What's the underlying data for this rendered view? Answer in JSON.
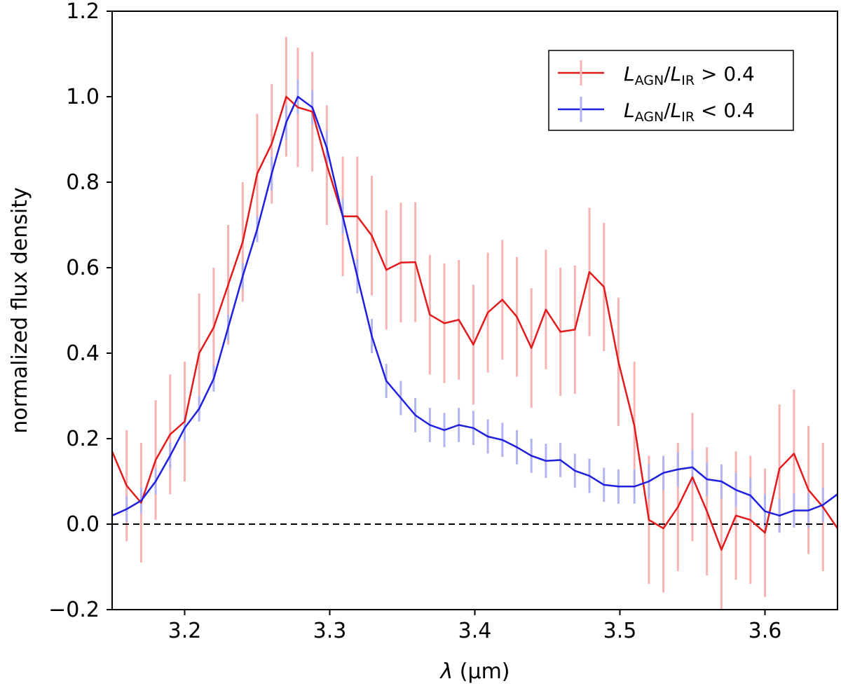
{
  "chart_data": {
    "type": "line",
    "xlabel_symbol": "λ",
    "xlabel_unit": "(μm)",
    "ylabel": "normalized flux density",
    "xlim": [
      3.15,
      3.65
    ],
    "ylim": [
      -0.2,
      1.2
    ],
    "xticks": [
      3.2,
      3.3,
      3.4,
      3.5,
      3.6
    ],
    "xtick_labels": [
      "3.2",
      "3.3",
      "3.4",
      "3.5",
      "3.6"
    ],
    "yticks": [
      -0.2,
      0.0,
      0.2,
      0.4,
      0.6,
      0.8,
      1.0,
      1.2
    ],
    "ytick_labels": [
      "−0.2",
      "0.0",
      "0.2",
      "0.4",
      "0.6",
      "0.8",
      "1.0",
      "1.2"
    ],
    "reference_line": {
      "y": 0.0,
      "style": "dashed",
      "color": "#000000"
    },
    "legend_location": "upper right",
    "series": [
      {
        "name": "high_agn",
        "legend": {
          "sym1": "L",
          "sub1": "AGN",
          "slash": "/",
          "sym2": "L",
          "sub2": "IR",
          "rest": " > 0.4"
        },
        "color": "#e31a1c",
        "errcolor": "#f7b2b2",
        "x": [
          3.15,
          3.16,
          3.17,
          3.18,
          3.19,
          3.2,
          3.21,
          3.22,
          3.23,
          3.24,
          3.25,
          3.26,
          3.27,
          3.278,
          3.288,
          3.298,
          3.309,
          3.319,
          3.329,
          3.339,
          3.349,
          3.359,
          3.369,
          3.379,
          3.389,
          3.399,
          3.409,
          3.419,
          3.429,
          3.439,
          3.449,
          3.459,
          3.469,
          3.479,
          3.489,
          3.499,
          3.51,
          3.52,
          3.53,
          3.54,
          3.55,
          3.56,
          3.57,
          3.58,
          3.59,
          3.6,
          3.61,
          3.62,
          3.63,
          3.64,
          3.65
        ],
        "y": [
          0.17,
          0.09,
          0.05,
          0.15,
          0.21,
          0.24,
          0.4,
          0.46,
          0.56,
          0.66,
          0.82,
          0.89,
          1.0,
          0.975,
          0.965,
          0.84,
          0.72,
          0.72,
          0.675,
          0.595,
          0.612,
          0.613,
          0.49,
          0.47,
          0.478,
          0.42,
          0.495,
          0.525,
          0.485,
          0.412,
          0.502,
          0.45,
          0.455,
          0.59,
          0.555,
          0.38,
          0.23,
          0.01,
          -0.01,
          0.04,
          0.11,
          0.03,
          -0.06,
          0.02,
          0.01,
          -0.02,
          0.13,
          0.165,
          0.08,
          0.04,
          -0.01
        ],
        "err": [
          0.0,
          0.13,
          0.14,
          0.14,
          0.14,
          0.14,
          0.14,
          0.14,
          0.14,
          0.14,
          0.14,
          0.14,
          0.14,
          0.14,
          0.14,
          0.14,
          0.14,
          0.14,
          0.14,
          0.14,
          0.14,
          0.14,
          0.14,
          0.14,
          0.14,
          0.14,
          0.14,
          0.14,
          0.14,
          0.14,
          0.14,
          0.15,
          0.15,
          0.15,
          0.15,
          0.15,
          0.15,
          0.15,
          0.15,
          0.15,
          0.15,
          0.15,
          0.15,
          0.15,
          0.15,
          0.15,
          0.15,
          0.15,
          0.15,
          0.15,
          0.0
        ]
      },
      {
        "name": "low_agn",
        "legend": {
          "sym1": "L",
          "sub1": "AGN",
          "slash": "/",
          "sym2": "L",
          "sub2": "IR",
          "rest": " < 0.4"
        },
        "color": "#1f1fe0",
        "errcolor": "#b3b3ef",
        "x": [
          3.15,
          3.16,
          3.17,
          3.18,
          3.19,
          3.2,
          3.21,
          3.22,
          3.23,
          3.24,
          3.25,
          3.26,
          3.27,
          3.278,
          3.288,
          3.298,
          3.309,
          3.319,
          3.329,
          3.339,
          3.349,
          3.359,
          3.369,
          3.379,
          3.389,
          3.399,
          3.409,
          3.419,
          3.429,
          3.439,
          3.449,
          3.459,
          3.469,
          3.479,
          3.489,
          3.499,
          3.51,
          3.52,
          3.53,
          3.54,
          3.55,
          3.56,
          3.57,
          3.58,
          3.59,
          3.6,
          3.61,
          3.62,
          3.63,
          3.64,
          3.65
        ],
        "y": [
          0.02,
          0.035,
          0.055,
          0.1,
          0.16,
          0.225,
          0.27,
          0.34,
          0.46,
          0.58,
          0.69,
          0.82,
          0.94,
          1.0,
          0.975,
          0.88,
          0.72,
          0.58,
          0.44,
          0.335,
          0.295,
          0.255,
          0.232,
          0.22,
          0.232,
          0.225,
          0.205,
          0.197,
          0.18,
          0.16,
          0.148,
          0.15,
          0.125,
          0.113,
          0.092,
          0.088,
          0.088,
          0.1,
          0.12,
          0.128,
          0.133,
          0.105,
          0.1,
          0.08,
          0.067,
          0.03,
          0.02,
          0.032,
          0.032,
          0.045,
          0.07
        ],
        "err": [
          0.0,
          0.03,
          0.03,
          0.03,
          0.03,
          0.03,
          0.03,
          0.03,
          0.03,
          0.03,
          0.03,
          0.04,
          0.04,
          0.04,
          0.04,
          0.04,
          0.04,
          0.04,
          0.04,
          0.04,
          0.04,
          0.04,
          0.04,
          0.04,
          0.04,
          0.04,
          0.04,
          0.04,
          0.04,
          0.04,
          0.04,
          0.04,
          0.04,
          0.04,
          0.04,
          0.04,
          0.04,
          0.04,
          0.04,
          0.04,
          0.04,
          0.04,
          0.04,
          0.04,
          0.04,
          0.04,
          0.04,
          0.04,
          0.04,
          0.04,
          0.0
        ]
      }
    ]
  }
}
